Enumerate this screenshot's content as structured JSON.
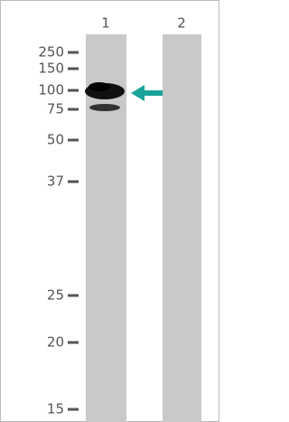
{
  "lanes": [
    "1",
    "2"
  ],
  "markers": [
    "250",
    "150",
    "100",
    "75",
    "50",
    "37",
    "25",
    "20",
    "15"
  ]
}
